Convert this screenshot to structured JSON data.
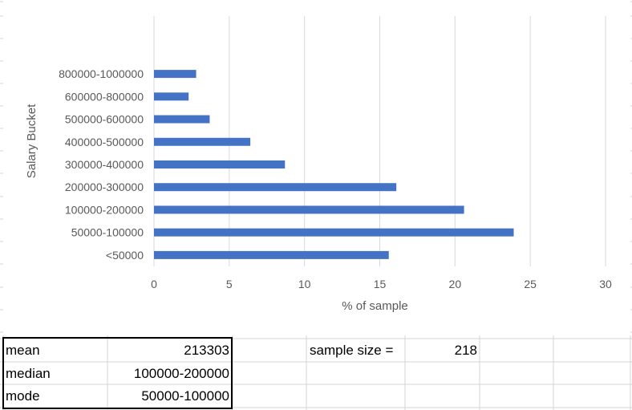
{
  "chart_data": {
    "type": "bar",
    "orientation": "horizontal",
    "title": "",
    "xlabel": "% of sample",
    "ylabel": "Salary Bucket",
    "categories": [
      "<50000",
      "50000-100000",
      "100000-200000",
      "200000-300000",
      "300000-400000",
      "400000-500000",
      "500000-600000",
      "600000-800000",
      "800000-1000000"
    ],
    "values": [
      15.6,
      23.9,
      20.6,
      16.1,
      8.7,
      6.4,
      3.7,
      2.3,
      2.8
    ],
    "xlim": [
      0,
      30
    ],
    "xticks": [
      0,
      5,
      10,
      15,
      20,
      25,
      30
    ],
    "grid": true,
    "legend": "none",
    "bar_color": "#4472c4",
    "grid_color": "#d9d9d9"
  },
  "stats_table": {
    "mean_label": "mean",
    "mean_value": "213303",
    "median_label": "median",
    "median_value": "100000-200000",
    "mode_label": "mode",
    "mode_value": "50000-100000"
  },
  "sample": {
    "label": "sample size =",
    "value": "218"
  }
}
